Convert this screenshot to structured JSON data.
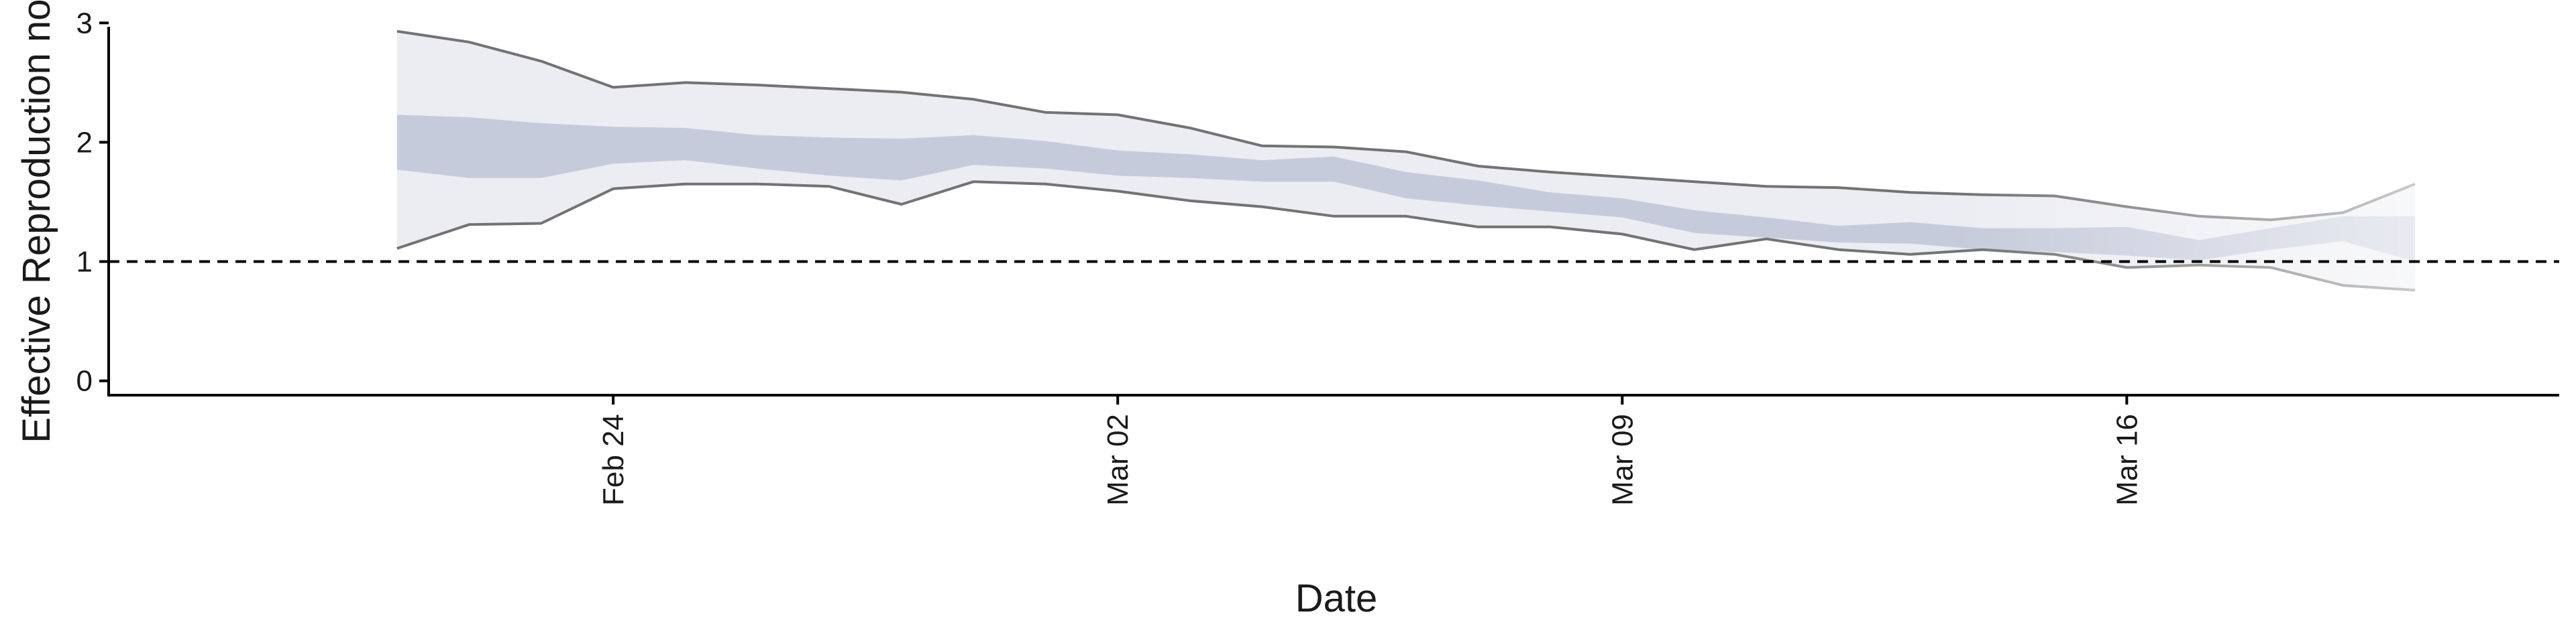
{
  "chart_data": {
    "type": "area",
    "title": "",
    "xlabel": "Date",
    "ylabel": "Effective Reproduction no",
    "x": [
      "2020-02-21",
      "2020-02-22",
      "2020-02-23",
      "2020-02-24",
      "2020-02-25",
      "2020-02-26",
      "2020-02-27",
      "2020-02-28",
      "2020-02-29",
      "2020-03-01",
      "2020-03-02",
      "2020-03-03",
      "2020-03-04",
      "2020-03-05",
      "2020-03-06",
      "2020-03-07",
      "2020-03-08",
      "2020-03-09",
      "2020-03-10",
      "2020-03-11",
      "2020-03-12",
      "2020-03-13",
      "2020-03-14",
      "2020-03-15",
      "2020-03-16",
      "2020-03-17",
      "2020-03-18",
      "2020-03-19",
      "2020-03-20"
    ],
    "series": [
      {
        "values": [
          1.11,
          1.31,
          1.32,
          1.61,
          1.65,
          1.65,
          1.63,
          1.48,
          1.67,
          1.65,
          1.59,
          1.51,
          1.46,
          1.38,
          1.38,
          1.29,
          1.29,
          1.23,
          1.1,
          1.19,
          1.1,
          1.06,
          1.1,
          1.06,
          0.95,
          0.97,
          0.95,
          0.8,
          0.76
        ]
      },
      {
        "values": [
          2.93,
          2.84,
          2.68,
          2.46,
          2.5,
          2.48,
          2.45,
          2.42,
          2.36,
          2.25,
          2.23,
          2.12,
          1.97,
          1.96,
          1.92,
          1.8,
          1.75,
          1.71,
          1.67,
          1.63,
          1.62,
          1.58,
          1.56,
          1.55,
          1.46,
          1.38,
          1.35,
          1.41,
          1.65
        ]
      },
      {
        "values": [
          1.77,
          1.7,
          1.7,
          1.82,
          1.85,
          1.78,
          1.72,
          1.68,
          1.81,
          1.78,
          1.72,
          1.7,
          1.67,
          1.67,
          1.53,
          1.47,
          1.42,
          1.37,
          1.24,
          1.2,
          1.16,
          1.15,
          1.1,
          1.08,
          1.05,
          1.01,
          1.1,
          1.17,
          1.0
        ]
      },
      {
        "values": [
          2.23,
          2.21,
          2.16,
          2.13,
          2.12,
          2.06,
          2.04,
          2.03,
          2.06,
          2.01,
          1.93,
          1.9,
          1.85,
          1.88,
          1.75,
          1.68,
          1.58,
          1.53,
          1.43,
          1.37,
          1.3,
          1.33,
          1.28,
          1.28,
          1.29,
          1.18,
          1.28,
          1.38,
          1.38
        ]
      }
    ],
    "xlim": [
      "2020-02-17",
      "2020-03-22"
    ],
    "ylim": [
      -0.12,
      3.08
    ],
    "yticks": [
      0,
      1,
      2,
      3
    ],
    "xticks": [
      "Feb 24",
      "Mar 02",
      "Mar 09",
      "Mar 16"
    ],
    "reference_line": {
      "y": 1,
      "style": "dashed"
    },
    "grid": false,
    "legend": "none",
    "colors": {
      "outer_band": "#ecedf2",
      "inner_band": "#c6cbdb",
      "band_edge": "#737373",
      "axis": "#000000"
    }
  }
}
